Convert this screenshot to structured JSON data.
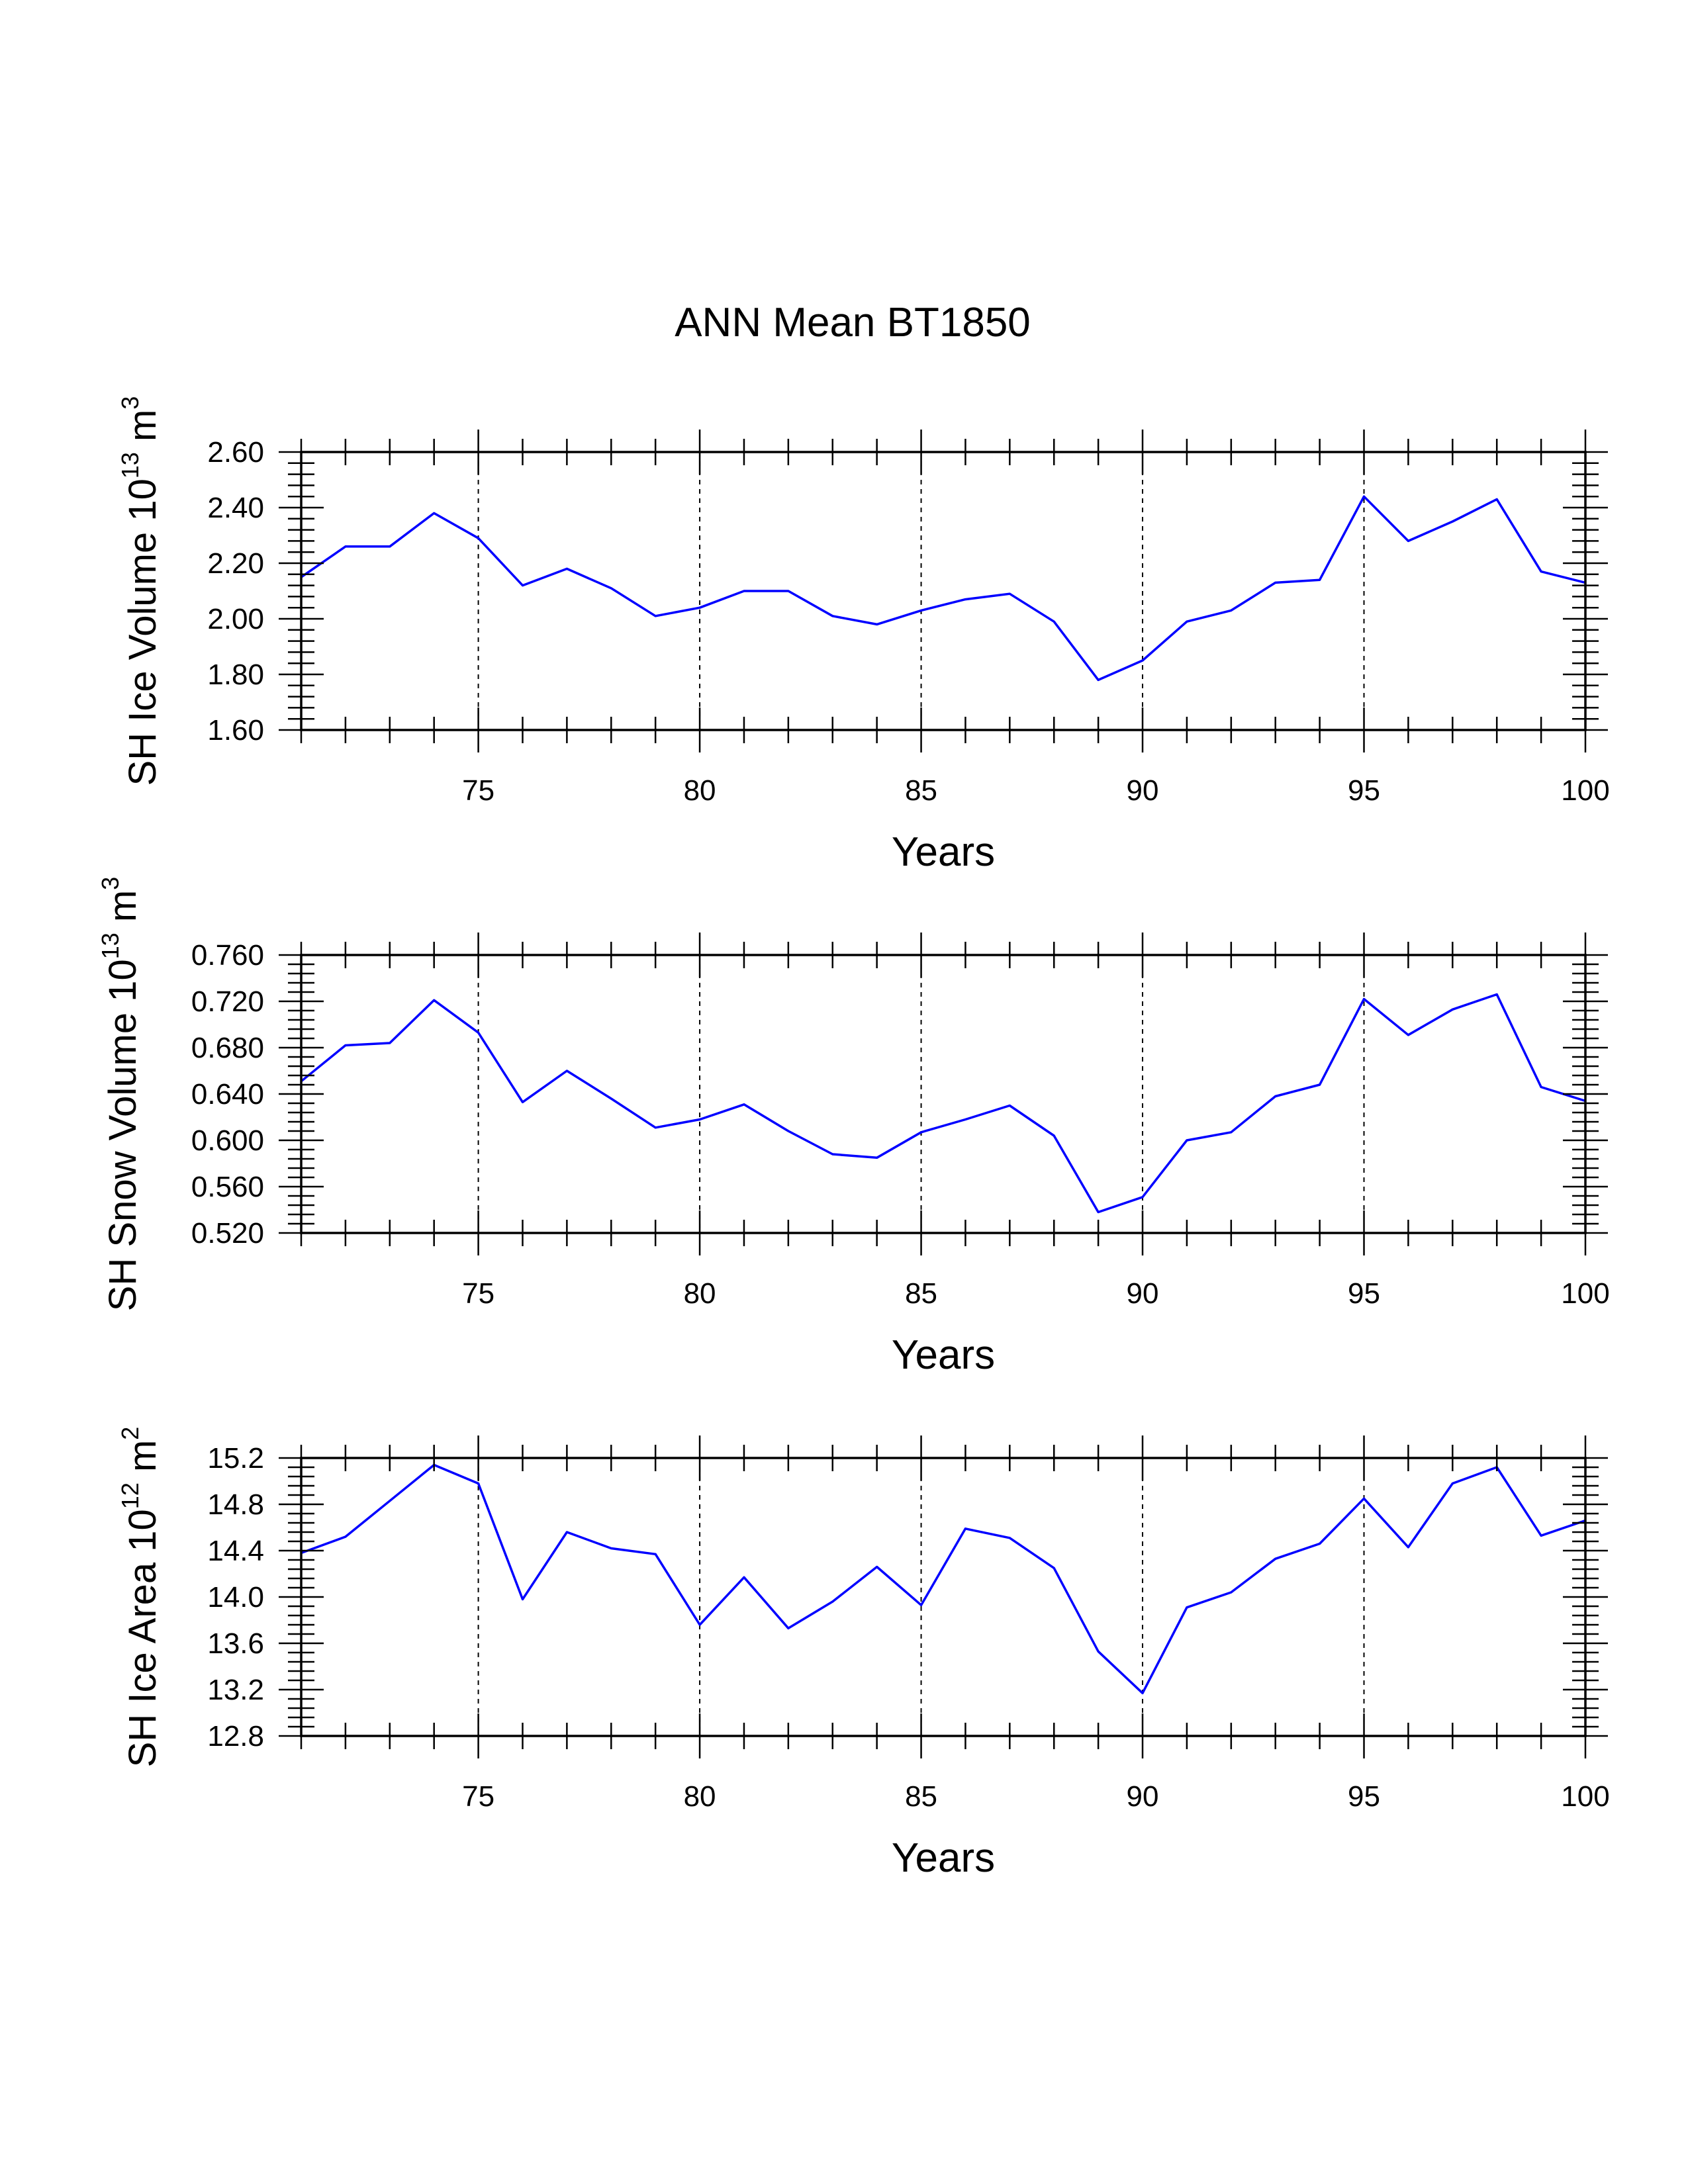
{
  "page_title": "ANN Mean BT1850",
  "chart_data": [
    {
      "type": "line",
      "title": "ANN Mean BT1850",
      "xlabel": "Years",
      "ylabel": {
        "base": "SH Ice Volume 10",
        "exp": "13",
        "unit": " m",
        "unit_exp": "3"
      },
      "xlim": [
        71,
        100
      ],
      "ylim": [
        1.6,
        2.6
      ],
      "xticks": [
        75,
        80,
        85,
        90,
        95,
        100
      ],
      "yticks": [
        1.6,
        1.8,
        2.0,
        2.2,
        2.4,
        2.6
      ],
      "ytick_labels": [
        "1.60",
        "1.80",
        "2.00",
        "2.20",
        "2.40",
        "2.60"
      ],
      "vgrid": [
        75,
        80,
        85,
        90,
        95
      ],
      "line_color": "#0000ff",
      "x": [
        71,
        72,
        73,
        74,
        75,
        76,
        77,
        78,
        79,
        80,
        81,
        82,
        83,
        84,
        85,
        86,
        87,
        88,
        89,
        90,
        91,
        92,
        93,
        94,
        95,
        96,
        97,
        98,
        99,
        100
      ],
      "y": [
        2.15,
        2.26,
        2.26,
        2.38,
        2.29,
        2.12,
        2.18,
        2.11,
        2.01,
        2.04,
        2.1,
        2.1,
        2.01,
        1.98,
        2.03,
        2.07,
        2.09,
        1.99,
        1.78,
        1.85,
        1.99,
        2.03,
        2.13,
        2.14,
        2.44,
        2.28,
        2.35,
        2.43,
        2.17,
        2.13
      ]
    },
    {
      "type": "line",
      "xlabel": "Years",
      "ylabel": {
        "base": "SH Snow Volume 10",
        "exp": "13",
        "unit": " m",
        "unit_exp": "3"
      },
      "xlim": [
        71,
        100
      ],
      "ylim": [
        0.52,
        0.76
      ],
      "xticks": [
        75,
        80,
        85,
        90,
        95,
        100
      ],
      "yticks": [
        0.52,
        0.56,
        0.6,
        0.64,
        0.68,
        0.72,
        0.76
      ],
      "ytick_labels": [
        "0.520",
        "0.560",
        "0.600",
        "0.640",
        "0.680",
        "0.720",
        "0.760"
      ],
      "vgrid": [
        75,
        80,
        85,
        90,
        95
      ],
      "line_color": "#0000ff",
      "x": [
        71,
        72,
        73,
        74,
        75,
        76,
        77,
        78,
        79,
        80,
        81,
        82,
        83,
        84,
        85,
        86,
        87,
        88,
        89,
        90,
        91,
        92,
        93,
        94,
        95,
        96,
        97,
        98,
        99,
        100
      ],
      "y": [
        0.651,
        0.682,
        0.684,
        0.721,
        0.693,
        0.633,
        0.66,
        0.636,
        0.611,
        0.618,
        0.631,
        0.608,
        0.588,
        0.585,
        0.607,
        0.618,
        0.63,
        0.604,
        0.538,
        0.551,
        0.6,
        0.607,
        0.638,
        0.648,
        0.722,
        0.691,
        0.713,
        0.726,
        0.646,
        0.634
      ]
    },
    {
      "type": "line",
      "xlabel": "Years",
      "ylabel": {
        "base": "SH Ice Area 10",
        "exp": "12",
        "unit": " m",
        "unit_exp": "2"
      },
      "xlim": [
        71,
        100
      ],
      "ylim": [
        12.8,
        15.2
      ],
      "xticks": [
        75,
        80,
        85,
        90,
        95,
        100
      ],
      "yticks": [
        12.8,
        13.2,
        13.6,
        14.0,
        14.4,
        14.8,
        15.2
      ],
      "ytick_labels": [
        "12.8",
        "13.2",
        "13.6",
        "14.0",
        "14.4",
        "14.8",
        "15.2"
      ],
      "vgrid": [
        75,
        80,
        85,
        90,
        95
      ],
      "line_color": "#0000ff",
      "x": [
        71,
        72,
        73,
        74,
        75,
        76,
        77,
        78,
        79,
        80,
        81,
        82,
        83,
        84,
        85,
        86,
        87,
        88,
        89,
        90,
        91,
        92,
        93,
        94,
        95,
        96,
        97,
        98,
        99,
        100
      ],
      "y": [
        14.38,
        14.52,
        14.83,
        15.14,
        14.98,
        13.98,
        14.56,
        14.42,
        14.37,
        13.76,
        14.17,
        13.73,
        13.96,
        14.26,
        13.93,
        14.59,
        14.51,
        14.25,
        13.53,
        13.17,
        13.91,
        14.04,
        14.33,
        14.46,
        14.85,
        14.43,
        14.98,
        15.12,
        14.53,
        14.66
      ]
    }
  ]
}
